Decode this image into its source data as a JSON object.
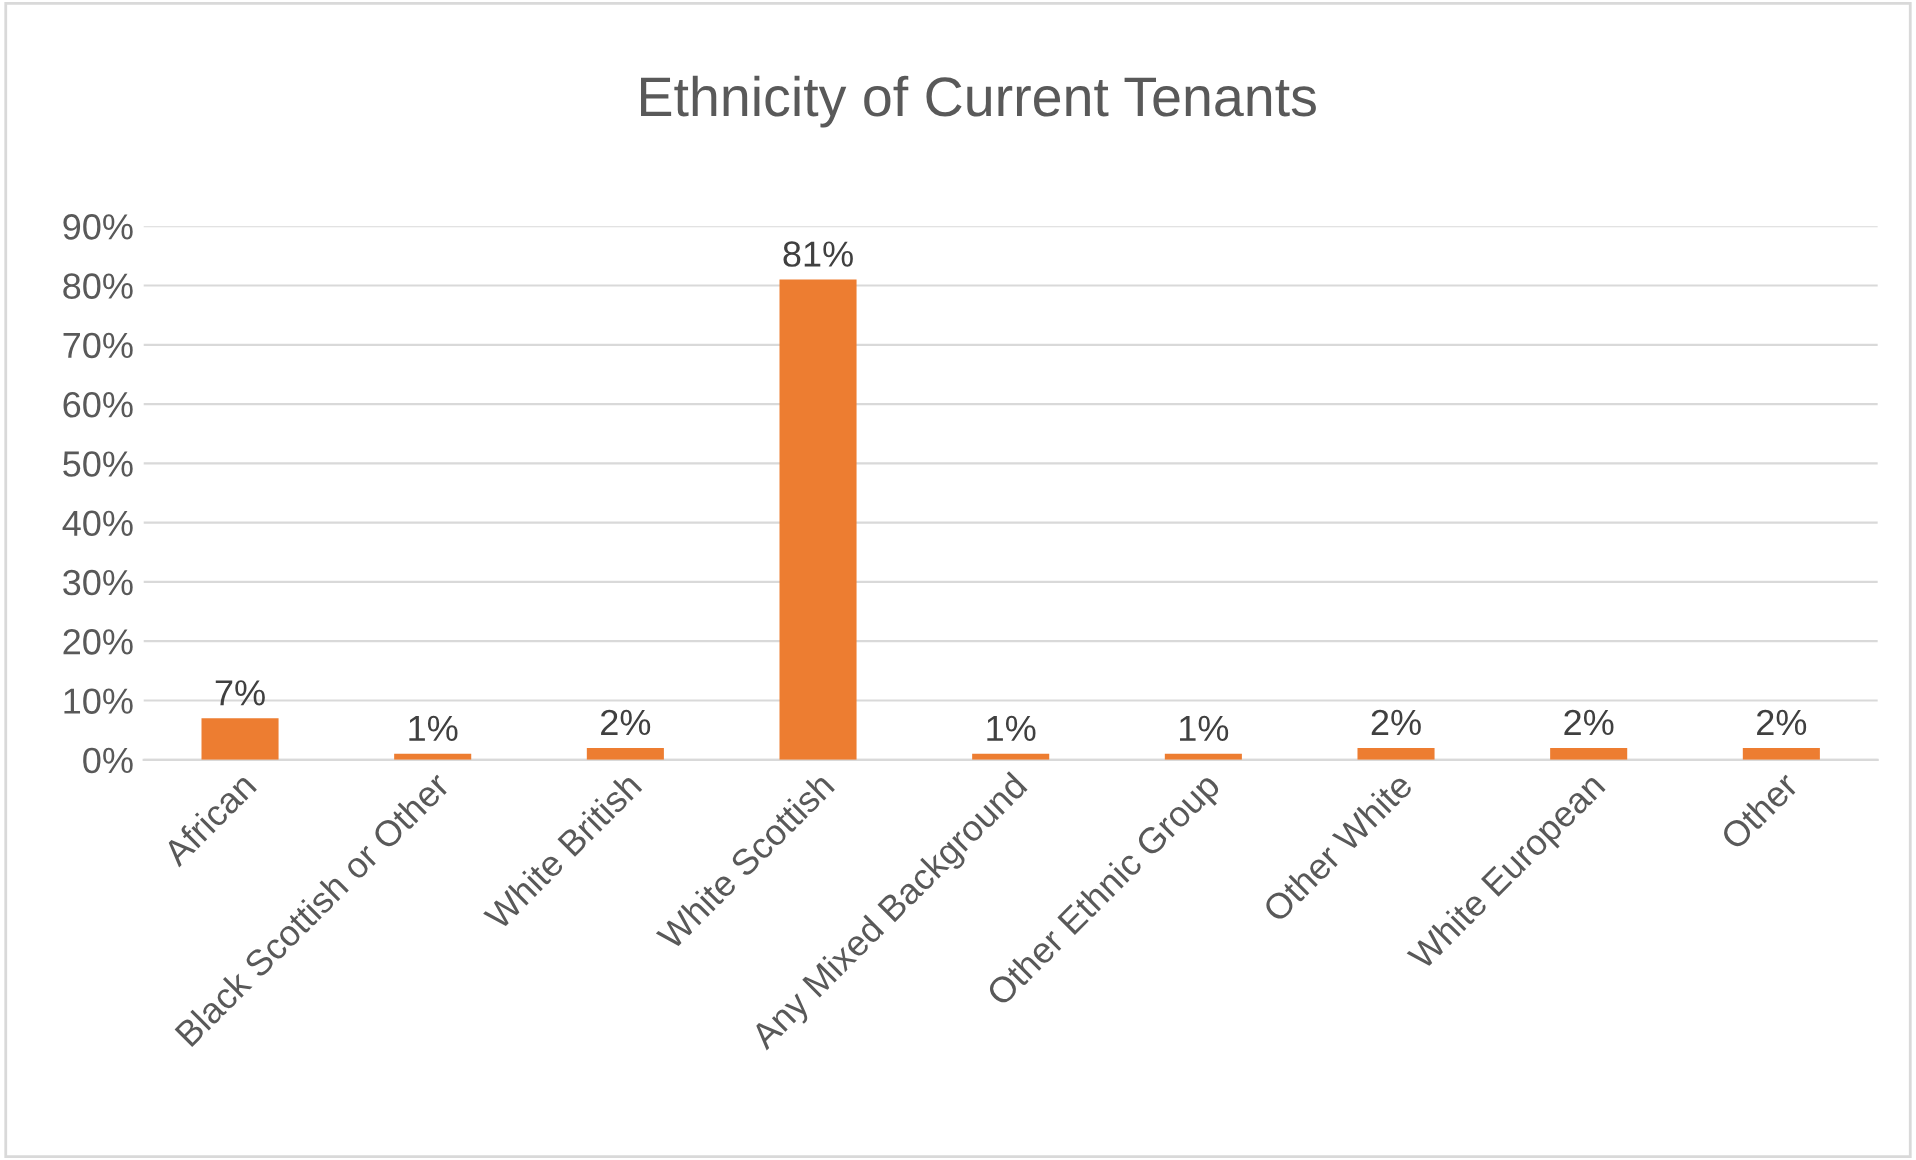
{
  "chart_data": {
    "type": "bar",
    "title": "Ethnicity of Current Tenants",
    "categories": [
      "African",
      "Black Scottish or Other",
      "White British",
      "White Scottish",
      "Any Mixed Background",
      "Other Ethnic Group",
      "Other White",
      "White European",
      "Other"
    ],
    "values": [
      7,
      1,
      2,
      81,
      1,
      1,
      2,
      2,
      2
    ],
    "value_labels": [
      "7%",
      "1%",
      "2%",
      "81%",
      "1%",
      "1%",
      "2%",
      "2%",
      "2%"
    ],
    "color": "#ed7d31",
    "ylim": [
      0,
      90
    ],
    "yticks": [
      {
        "value": 0,
        "label": "0%"
      },
      {
        "value": 10,
        "label": "10%"
      },
      {
        "value": 20,
        "label": "20%"
      },
      {
        "value": 30,
        "label": "30%"
      },
      {
        "value": 40,
        "label": "40%"
      },
      {
        "value": 50,
        "label": "50%"
      },
      {
        "value": 60,
        "label": "60%"
      },
      {
        "value": 70,
        "label": "70%"
      },
      {
        "value": 80,
        "label": "80%"
      },
      {
        "value": 90,
        "label": "90%"
      }
    ],
    "grid": "y",
    "legend": false
  }
}
